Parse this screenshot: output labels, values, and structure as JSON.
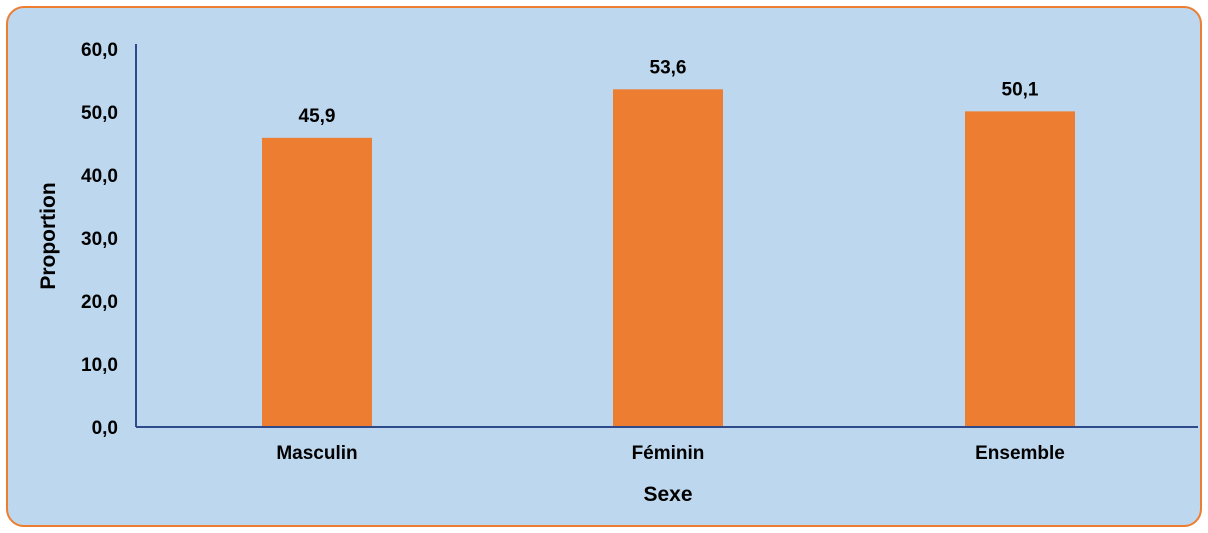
{
  "chart_data": {
    "type": "bar",
    "categories": [
      "Masculin",
      "Féminin",
      "Ensemble"
    ],
    "values": [
      45.9,
      53.6,
      50.1
    ],
    "value_labels": [
      "45,9",
      "53,6",
      "50,1"
    ],
    "title": "",
    "xlabel": "Sexe",
    "ylabel": "Proportion",
    "ylim": [
      0,
      60
    ],
    "yticks": [
      0,
      10,
      20,
      30,
      40,
      50,
      60
    ],
    "ytick_labels": [
      "0,0",
      "10,0",
      "20,0",
      "30,0",
      "40,0",
      "50,0",
      "60,0"
    ],
    "grid": false,
    "legend": "none"
  },
  "colors": {
    "bar": "#ED7D31",
    "plot_background": "#BDD7EE",
    "frame_border": "#ED7D31",
    "axis": "#2F4A8A"
  }
}
